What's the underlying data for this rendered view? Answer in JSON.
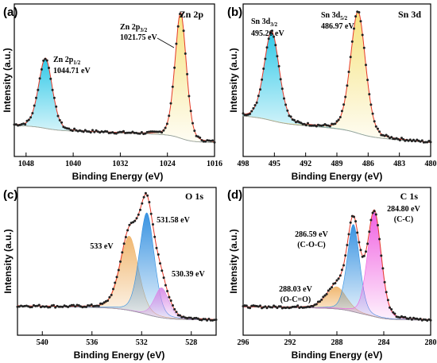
{
  "chart_data": [
    {
      "type": "line",
      "panel_label": "(a)",
      "title": "Zn 2p",
      "xlabel": "Binding Energy (eV)",
      "ylabel": "Intensity (a.u.)",
      "xlim": [
        1050,
        1016
      ],
      "xticks": [
        "1048",
        "1040",
        "1032",
        "1024",
        "1016"
      ],
      "xtick_values": [
        1048,
        1040,
        1032,
        1024,
        1016
      ],
      "background": {
        "left_level": 0.075,
        "right_level": 0.02
      },
      "peaks": [
        {
          "name": "Zn 2p1/2",
          "center": 1044.71,
          "amplitude": 0.52,
          "width": 1.2,
          "color": "#26c6e6"
        },
        {
          "name": "Zn 2p3/2",
          "center": 1021.75,
          "amplitude": 0.93,
          "width": 1.0,
          "color": "#f6e27a"
        }
      ],
      "annotations": [
        {
          "main": "Zn 2p",
          "sub": "1/2",
          "value": "1044.71 eV",
          "x": 1044.71
        },
        {
          "main": "Zn 2p",
          "sub": "3/2",
          "value": "1021.75 eV",
          "x": 1021.75
        }
      ]
    },
    {
      "type": "line",
      "panel_label": "(b)",
      "title": "Sn 3d",
      "xlabel": "Binding Energy (eV)",
      "ylabel": "Intensity (a.u.)",
      "xlim": [
        498,
        480
      ],
      "xticks": [
        "498",
        "495",
        "492",
        "489",
        "486",
        "483",
        "480"
      ],
      "xtick_values": [
        498,
        495,
        492,
        489,
        486,
        483,
        480
      ],
      "background": {
        "left_level": 0.14,
        "right_level": 0.02
      },
      "peaks": [
        {
          "name": "Sn 3d3/2",
          "center": 495.26,
          "amplitude": 0.66,
          "width": 0.75,
          "color": "#26c6e6"
        },
        {
          "name": "Sn 3d5/2",
          "center": 486.97,
          "amplitude": 0.9,
          "width": 0.75,
          "color": "#f6e27a"
        }
      ],
      "annotations": [
        {
          "main": "Sn 3d",
          "sub": "3/2",
          "value": "495.26 eV",
          "x": 495.26
        },
        {
          "main": "Sn 3d",
          "sub": "5/2",
          "value": "486.97 eV",
          "x": 486.97
        }
      ]
    },
    {
      "type": "line",
      "panel_label": "(c)",
      "title": "O 1s",
      "xlabel": "Binding Energy (eV)",
      "ylabel": "Intensity (a.u.)",
      "xlim": [
        542,
        526
      ],
      "xticks": [
        "540",
        "536",
        "532",
        "528"
      ],
      "xtick_values": [
        540,
        536,
        532,
        528
      ],
      "background": {
        "left_level": 0.06,
        "right_level": 0.03
      },
      "peaks": [
        {
          "name": "533 eV",
          "center": 533.0,
          "amplitude": 0.57,
          "width": 0.75,
          "color": "#f0b46a"
        },
        {
          "name": "531.58 eV",
          "center": 531.58,
          "amplitude": 0.78,
          "width": 0.62,
          "color": "#2f8ee0"
        },
        {
          "name": "530.39 eV",
          "center": 530.39,
          "amplitude": 0.23,
          "width": 0.6,
          "color": "#d88ae6"
        }
      ],
      "annotations": [
        {
          "value": "533 eV",
          "x": 533.0
        },
        {
          "value": "531.58 eV",
          "x": 531.58
        },
        {
          "value": "530.39 eV",
          "x": 530.39
        }
      ]
    },
    {
      "type": "line",
      "panel_label": "(d)",
      "title": "C 1s",
      "xlabel": "Binding Energy (eV)",
      "ylabel": "Intensity (a.u.)",
      "xlim": [
        296,
        280
      ],
      "xticks": [
        "296",
        "292",
        "288",
        "284",
        "280"
      ],
      "xtick_values": [
        296,
        292,
        288,
        284,
        280
      ],
      "background": {
        "left_level": 0.05,
        "right_level": 0.03
      },
      "peaks": [
        {
          "name": "288.03 eV",
          "center": 288.03,
          "amplitude": 0.17,
          "width": 0.85,
          "color": "#f0b46a"
        },
        {
          "name": "286.59 eV",
          "center": 286.59,
          "amplitude": 0.67,
          "width": 0.55,
          "color": "#2f8ee0"
        },
        {
          "name": "284.80 eV",
          "center": 284.8,
          "amplitude": 0.8,
          "width": 0.6,
          "color": "#ef5be0"
        }
      ],
      "annotations": [
        {
          "value": "288.03 eV",
          "label": "(O-C=O)",
          "x": 288.03
        },
        {
          "value": "286.59 eV",
          "label": "(C-O-C)",
          "x": 286.59
        },
        {
          "value": "284.80 eV",
          "label": "(C-C)",
          "x": 284.8
        }
      ]
    }
  ]
}
